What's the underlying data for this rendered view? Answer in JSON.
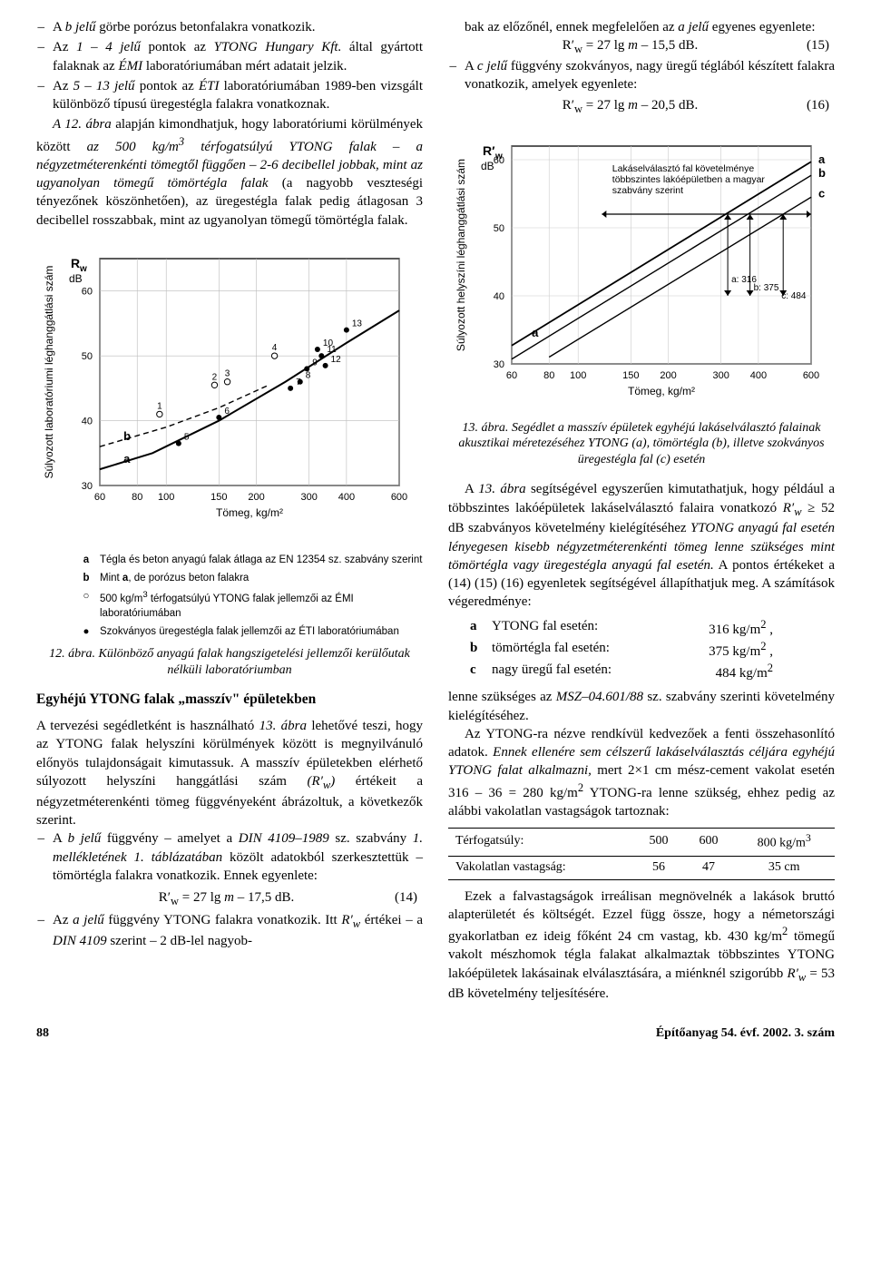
{
  "left": {
    "bullets1": [
      "A <i>b jelű</i> görbe porózus betonfalakra vonatkozik.",
      "Az <i>1 – 4 jelű</i> pontok az <i>YTONG Hungary Kft.</i> által gyártott falaknak az <i>ÉMI</i> laboratóriumában mért adatait jelzik.",
      "Az <i>5 – 13 jelű</i> pontok az <i>ÉTI</i> laboratóriumában 1989-ben vizsgált különböző típusú üregestégla falakra vonatkoznak."
    ],
    "para1": "<i>A 12. ábra</i> alapján kimondhatjuk, hogy laboratóriumi körülmények között <i>az 500 kg/m<sup>3</sup> térfogatsúlyú YTONG falak – a négyzetméterenkénti tömegtől függően – 2-6 decibellel jobbak, mint az ugyanolyan tömegű tömörtégla falak</i> (a nagyobb veszteségi tényezőnek köszönhetően), az üregestégla falak pedig átlagosan 3 decibellel rosszabbak, mint az ugyanolyan tömegű tömörtégla falak.",
    "chart12_caption": "12. ábra. Különböző anyagú falak hangszigetelési jellemzői kerülőutak nélküli laboratóriumban",
    "legend": {
      "a": "Tégla és beton anyagú falak átlaga az EN 12354 sz. szabvány szerint",
      "b": "Mint <b>a</b>, de porózus beton falakra",
      "open": "500 kg/m<sup>3</sup> térfogatsúlyú YTONG falak jellemzői az ÉMI laboratóriumában",
      "closed": "Szokványos üregestégla falak jellemzői az ÉTI laboratóriumában"
    },
    "section_h": "Egyhéjú YTONG falak „masszív\" épületekben",
    "para2": "A tervezési segédletként is használható <i>13. ábra</i> lehetővé teszi, hogy az YTONG falak helyszíni körülmények között is megnyilvánuló előnyös tulajdonságait kimutassuk. A masszív épületekben elérhető súlyozott helyszíni hanggátlási szám <i>(R′<sub>w</sub>)</i> értékeit a négyzetméterenkénti tömeg függvényeként ábrázoltuk, a következők szerint.",
    "bullets2": [
      "A <i>b jelű</i> függvény – amelyet a <i>DIN 4109–1989</i> sz. szabvány <i>1. mellékletének 1. táblázatában</i> közölt adatokból szerkesztettük – tömörtégla falakra vonatkozik. Ennek egyenlete:",
      "Az <i>a jelű</i> függvény YTONG falakra vonatkozik. Itt <i>R′<sub>w</sub></i> értékei – a <i>DIN 4109</i> szerint – 2 dB-lel nagyob-"
    ],
    "eq14": {
      "formula": "R′<sub>w</sub> = 27 lg <i>m</i> – 17,5 dB.",
      "num": "(14)"
    }
  },
  "right": {
    "continue": "bak az előzőnél, ennek megfelelően az <i>a jelű</i> egyenes egyenlete:",
    "eq15": {
      "formula": "R′<sub>w</sub> = 27 lg <i>m</i> – 15,5 dB.",
      "num": "(15)"
    },
    "bullet_c": "A <i>c jelű</i> függvény szokványos, nagy üregű téglából készített falakra vonatkozik, amelyek egyenlete:",
    "eq16": {
      "formula": "R′<sub>w</sub> = 27 lg <i>m</i> – 20,5 dB.",
      "num": "(16)"
    },
    "chart13_caption": "13. ábra. Segédlet a masszív épületek egyhéjú lakáselválasztó falainak akusztikai méretezéséhez YTONG (a), tömörtégla (b), illetve szokványos üregestégla fal (c) esetén",
    "para3": "A <i>13. ábra</i> segítségével egyszerűen kimutathatjuk, hogy például a többszintes lakóépületek lakáselválasztó falaira vonatkozó <i>R′<sub>w</sub></i> ≥ 52 dB szabványos követelmény kielégítéséhez <i>YTONG anyagú fal esetén lényegesen kisebb négyzetméterenkénti tömeg lenne szükséges mint tömörtégla vagy üregestégla anyagú fal esetén.</i> A pontos értékeket a (14) (15) (16) egyenletek segítségével állapíthatjuk meg. A számítások végeredménye:",
    "results": [
      {
        "k": "a",
        "label": "YTONG fal esetén:",
        "val": "316 kg/m<sup>2</sup> ,"
      },
      {
        "k": "b",
        "label": "tömörtégla fal esetén:",
        "val": "375 kg/m<sup>2</sup> ,"
      },
      {
        "k": "c",
        "label": "nagy üregű fal esetén:",
        "val": "484 kg/m<sup>2</sup>"
      }
    ],
    "para4": "lenne szükséges az <i>MSZ–04.601/88</i> sz. szabvány szerinti követelmény kielégítéséhez.",
    "para5": "Az YTONG-ra nézve rendkívül kedvezőek a fenti összehasonlító adatok. <i>Ennek ellenére sem célszerű lakáselválasztás céljára egyhéjú YTONG falat alkalmazni,</i> mert 2×1 cm mész-cement vakolat esetén 316 – 36 = 280 kg/m<sup>2</sup> YTONG-ra lenne szükség, ehhez pedig az alábbi vakolatlan vastagságok tartoznak:",
    "table": {
      "rows": [
        [
          "Térfogatsúly:",
          "500",
          "600",
          "800 kg/m<sup>3</sup>"
        ],
        [
          "Vakolatlan vastagság:",
          "56",
          "47",
          "35 cm"
        ]
      ]
    },
    "para6": "Ezek a falvastagságok irreálisan megnövelnék a lakások bruttó alapterületét és költségét. Ezzel függ össze, hogy a németországi gyakorlatban ez ideig főként 24 cm vastag, kb. 430 kg/m<sup>2</sup> tömegű vakolt mészhomok tégla falakat alkalmaztak többszintes YTONG lakóépületek lakásainak elválasztására, a miénknél szigorúbb <i>R′<sub>w</sub></i> = 53 dB követelmény teljesítésére."
  },
  "chart12": {
    "type": "line+scatter",
    "x_label": "Tömeg, kg/m²",
    "y_label_top": "R",
    "y_label_sub": "w",
    "y_label_unit": "dB",
    "y_axis_title": "Súlyozott laboratóriumi léghanggátlási szám",
    "x_ticks": [
      60,
      80,
      100,
      150,
      200,
      300,
      400,
      600
    ],
    "y_ticks": [
      30,
      40,
      50,
      60
    ],
    "xlim": [
      60,
      600
    ],
    "ylim": [
      30,
      65
    ],
    "curve_a": [
      [
        60,
        32.5
      ],
      [
        90,
        35
      ],
      [
        150,
        40
      ],
      [
        250,
        46
      ],
      [
        400,
        52
      ],
      [
        600,
        57
      ]
    ],
    "curve_b_dash": [
      [
        60,
        36
      ],
      [
        100,
        39
      ],
      [
        150,
        42
      ],
      [
        220,
        45.5
      ]
    ],
    "open_points": [
      {
        "n": "1",
        "x": 95,
        "y": 41
      },
      {
        "n": "2",
        "x": 145,
        "y": 45.5
      },
      {
        "n": "3",
        "x": 160,
        "y": 46
      },
      {
        "n": "4",
        "x": 230,
        "y": 50
      }
    ],
    "closed_points": [
      {
        "n": "5",
        "x": 110,
        "y": 36.5
      },
      {
        "n": "6",
        "x": 150,
        "y": 40.5
      },
      {
        "n": "7",
        "x": 260,
        "y": 45
      },
      {
        "n": "8",
        "x": 280,
        "y": 46
      },
      {
        "n": "9",
        "x": 295,
        "y": 48
      },
      {
        "n": "10",
        "x": 320,
        "y": 51
      },
      {
        "n": "11",
        "x": 330,
        "y": 50
      },
      {
        "n": "12",
        "x": 340,
        "y": 48.5
      },
      {
        "n": "13",
        "x": 400,
        "y": 54
      }
    ],
    "line_color": "#000000",
    "dash": "6,4",
    "font_size_label": 11,
    "font_size_axis": 12,
    "bg": "#ffffff"
  },
  "chart13": {
    "type": "line",
    "x_label": "Tömeg, kg/m²",
    "y_label_top": "R′",
    "y_label_sub": "w",
    "y_label_unit": "dB",
    "y_axis_title": "Súlyozott helyszíni léghanggátlási szám",
    "x_ticks": [
      60,
      80,
      100,
      150,
      200,
      300,
      400,
      600
    ],
    "y_ticks": [
      30,
      40,
      50,
      60
    ],
    "xlim": [
      60,
      600
    ],
    "ylim": [
      30,
      62
    ],
    "line_a": [
      [
        60,
        32.7
      ],
      [
        600,
        59.7
      ]
    ],
    "line_b": [
      [
        60,
        30.7
      ],
      [
        600,
        57.7
      ]
    ],
    "line_c": [
      [
        80,
        31
      ],
      [
        600,
        54.5
      ]
    ],
    "req_line_y": 52,
    "drop_a_x": 316,
    "drop_b_x": 375,
    "drop_c_x": 484,
    "annot": "Lakáselválasztó fal követelménye\ntöbbszintes lakóépületben a magyar\nszabvány szerint",
    "val_labels": {
      "a": "a: 316",
      "b": "b: 375",
      "c": "c: 484"
    },
    "line_color": "#000000",
    "font_size_label": 11
  },
  "footer": {
    "page": "88",
    "pub": "Építőanyag 54. évf. 2002. 3. szám"
  }
}
